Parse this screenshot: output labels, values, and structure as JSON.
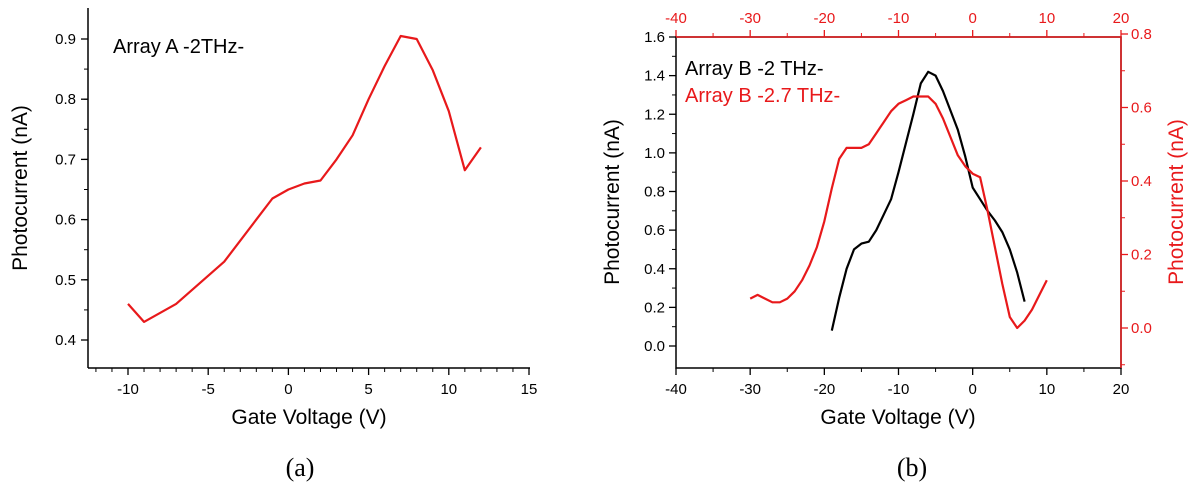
{
  "colors": {
    "black": "#000000",
    "red": "#e8191b"
  },
  "chart_data": [
    {
      "type": "line",
      "panel_label": "(a)",
      "annotation": "Array A -2THz-",
      "xlabel": "Gate Voltage (V)",
      "ylabel": "Photocurrent (nA)",
      "xlim": [
        -12.5,
        15
      ],
      "ylim": [
        0.38,
        0.94
      ],
      "xticks": [
        -10,
        -5,
        0,
        5,
        10,
        15
      ],
      "yticks": [
        0.4,
        0.5,
        0.6,
        0.7,
        0.8,
        0.9
      ],
      "xtick_labels": [
        "-10",
        "-5",
        "0",
        "5",
        "10",
        "15"
      ],
      "ytick_labels": [
        "0.4",
        "0.5",
        "0.6",
        "0.7",
        "0.8",
        "0.9"
      ],
      "series": [
        {
          "color": "#e8191b",
          "x": [
            -10,
            -9,
            -7,
            -4,
            -2,
            -1,
            0,
            1,
            2,
            3,
            4,
            5,
            6,
            7,
            8,
            9,
            10,
            11,
            12
          ],
          "y": [
            0.46,
            0.43,
            0.46,
            0.53,
            0.6,
            0.635,
            0.65,
            0.66,
            0.665,
            0.7,
            0.74,
            0.8,
            0.855,
            0.905,
            0.9,
            0.848,
            0.78,
            0.682,
            0.72
          ]
        }
      ]
    },
    {
      "type": "line",
      "panel_label": "(b)",
      "xlabel": "Gate Voltage (V)",
      "ylabel": "Photocurrent (nA)",
      "ylabel_right": "Photocurrent (nA)",
      "xlim": [
        -40,
        20
      ],
      "ylim": [
        -0.1,
        1.6
      ],
      "ylim_right": [
        -0.1,
        0.8
      ],
      "xticks": [
        -40,
        -30,
        -20,
        -10,
        0,
        10,
        20
      ],
      "xtick_labels": [
        "-40",
        "-30",
        "-20",
        "-10",
        "0",
        "10",
        "20"
      ],
      "yticks": [
        0.0,
        0.2,
        0.4,
        0.6,
        0.8,
        1.0,
        1.2,
        1.4,
        1.6
      ],
      "ytick_labels": [
        "0.0",
        "0.2",
        "0.4",
        "0.6",
        "0.8",
        "1.0",
        "1.2",
        "1.4",
        "1.6"
      ],
      "yticks_right": [
        0.0,
        0.2,
        0.4,
        0.6,
        0.8
      ],
      "ytick_labels_right": [
        "0.0",
        "0.2",
        "0.4",
        "0.6",
        "0.8"
      ],
      "legend": [
        "Array B -2 THz-",
        "Array B -2.7 THz-"
      ],
      "legend_position": "top-left",
      "series": [
        {
          "name": "Array B -2 THz-",
          "color": "#000000",
          "axis": "left",
          "x": [
            -19,
            -18,
            -17,
            -16,
            -15,
            -14,
            -13,
            -12,
            -11,
            -10,
            -9,
            -8,
            -7,
            -6,
            -5,
            -4,
            -3,
            -2,
            -1,
            0,
            1,
            2,
            3,
            4,
            5,
            6,
            7
          ],
          "y": [
            0.08,
            0.25,
            0.4,
            0.5,
            0.53,
            0.54,
            0.6,
            0.68,
            0.76,
            0.9,
            1.05,
            1.2,
            1.36,
            1.42,
            1.4,
            1.32,
            1.22,
            1.12,
            0.98,
            0.82,
            0.76,
            0.7,
            0.65,
            0.59,
            0.5,
            0.38,
            0.23
          ]
        },
        {
          "name": "Array B -2.7 THz-",
          "color": "#e8191b",
          "axis": "right",
          "x": [
            -30,
            -29,
            -28,
            -27,
            -26,
            -25,
            -24,
            -23,
            -22,
            -21,
            -20,
            -19,
            -18,
            -17,
            -16,
            -15,
            -14,
            -13,
            -12,
            -11,
            -10,
            -9,
            -8,
            -7,
            -6,
            -5,
            -4,
            -3,
            -2,
            -1,
            0,
            1,
            2,
            3,
            4,
            5,
            6,
            7,
            8,
            9,
            10
          ],
          "y": [
            0.08,
            0.09,
            0.08,
            0.07,
            0.07,
            0.08,
            0.1,
            0.13,
            0.17,
            0.22,
            0.29,
            0.38,
            0.46,
            0.49,
            0.49,
            0.49,
            0.5,
            0.53,
            0.56,
            0.59,
            0.61,
            0.62,
            0.63,
            0.63,
            0.63,
            0.61,
            0.57,
            0.52,
            0.47,
            0.44,
            0.42,
            0.41,
            0.32,
            0.22,
            0.12,
            0.03,
            0.0,
            0.02,
            0.05,
            0.09,
            0.13
          ]
        }
      ]
    }
  ]
}
